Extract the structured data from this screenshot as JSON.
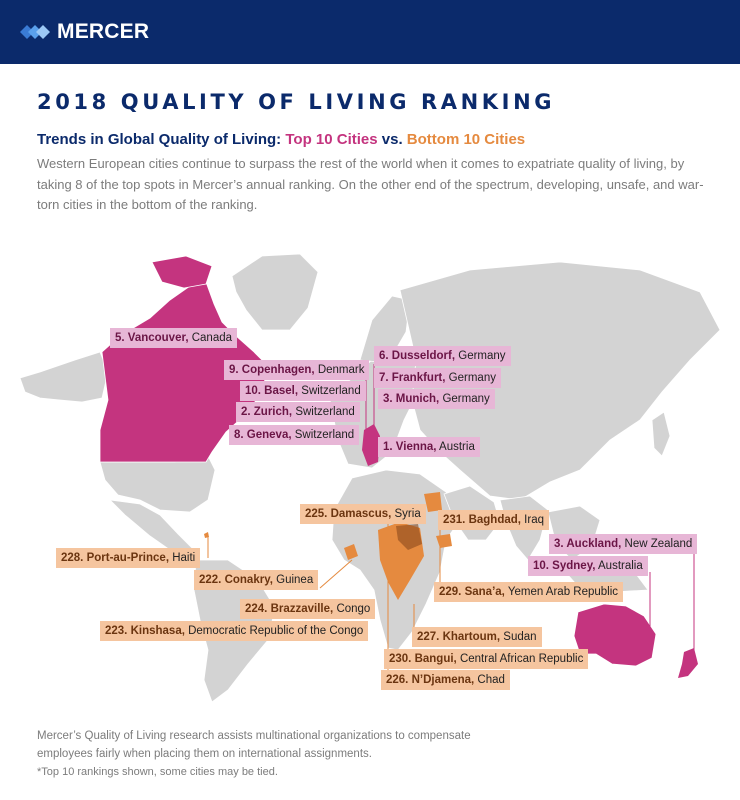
{
  "header": {
    "brand": "MERCER",
    "logo_icon": "mercer-logo-icon",
    "background": "#0b2a6b"
  },
  "title": "2018 QUALITY OF LIVING RANKING",
  "subtitle": {
    "part1": "Trends in Global Quality of Living: ",
    "part2": "Top 10 Cities",
    "part3": " vs. ",
    "part4": "Bottom 10 Cities"
  },
  "intro": "Western European cities continue to surpass the rest of the world when it comes to expatriate quality of living, by taking 8 of the top spots in Mercer’s annual ranking. On the other end of the spectrum, developing, unsafe, and war-torn cities in the bottom of the ranking.",
  "colors": {
    "navy": "#0b2a6b",
    "top": "#c4347f",
    "bottom": "#e58a3f",
    "land": "#cfcfcf"
  },
  "top_cities": [
    {
      "rank": "5. Vancouver,",
      "country": "Canada"
    },
    {
      "rank": "9. Copenhagen,",
      "country": "Denmark"
    },
    {
      "rank": "10. Basel,",
      "country": "Switzerland"
    },
    {
      "rank": "2. Zurich,",
      "country": "Switzerland"
    },
    {
      "rank": "8. Geneva,",
      "country": "Switzerland"
    },
    {
      "rank": "6. Dusseldorf,",
      "country": "Germany"
    },
    {
      "rank": "7. Frankfurt,",
      "country": "Germany"
    },
    {
      "rank": "3. Munich,",
      "country": "Germany"
    },
    {
      "rank": "1. Vienna,",
      "country": "Austria"
    },
    {
      "rank": "3. Auckland,",
      "country": "New Zealand"
    },
    {
      "rank": "10. Sydney,",
      "country": "Australia"
    }
  ],
  "bottom_cities": [
    {
      "rank": "225. Damascus,",
      "country": "Syria"
    },
    {
      "rank": "231. Baghdad,",
      "country": "Iraq"
    },
    {
      "rank": "228. Port-au-Prince,",
      "country": "Haiti"
    },
    {
      "rank": "222. Conakry,",
      "country": "Guinea"
    },
    {
      "rank": "229. Sana’a,",
      "country": "Yemen Arab Republic"
    },
    {
      "rank": "224. Brazzaville,",
      "country": "Congo"
    },
    {
      "rank": "223. Kinshasa,",
      "country": "Democratic Republic of the Congo"
    },
    {
      "rank": "227. Khartoum,",
      "country": "Sudan"
    },
    {
      "rank": "230. Bangui,",
      "country": "Central African Republic"
    },
    {
      "rank": "226. N’Djamena,",
      "country": "Chad"
    }
  ],
  "footer": "Mercer’s Quality of Living research assists multinational organizations to compensate employees fairly when placing them on international assignments.",
  "footnote": "*Top 10 rankings shown, some cities may be tied."
}
